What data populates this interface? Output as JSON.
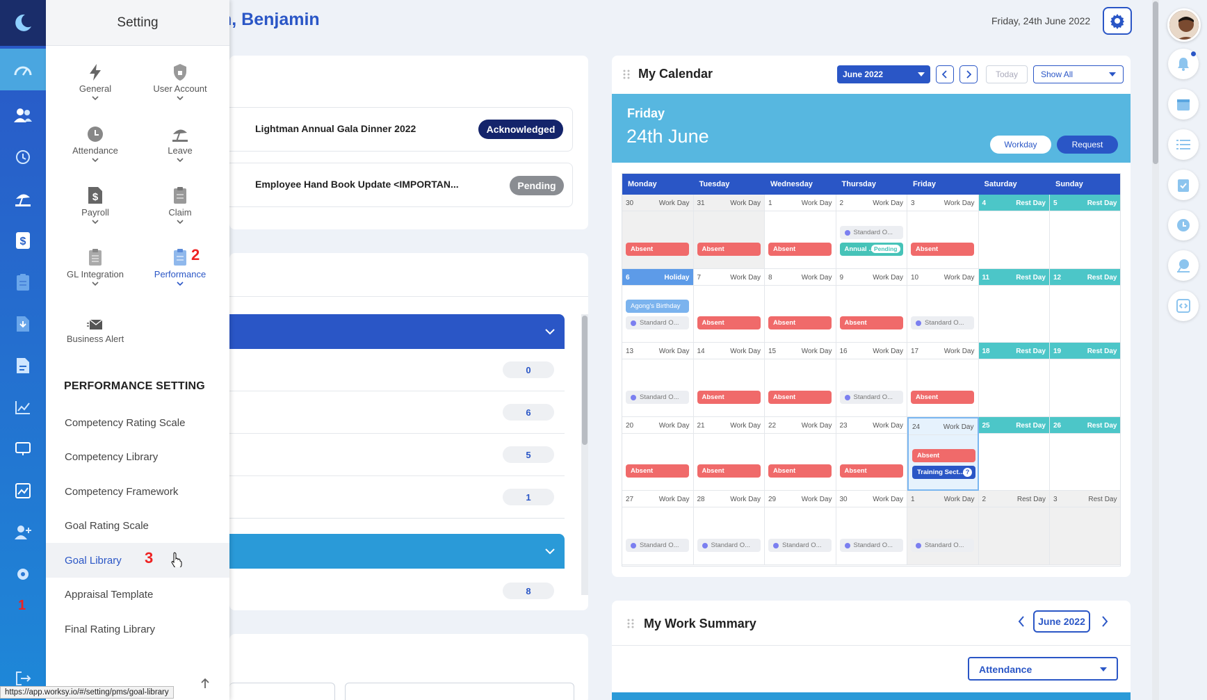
{
  "app": {
    "status_url": "https://app.worksy.io/#/setting/pms/goal-library"
  },
  "settings_panel": {
    "title": "Setting",
    "categories": [
      {
        "label": "General",
        "icon": "bolt-icon"
      },
      {
        "label": "User Account",
        "icon": "shield-lock-icon"
      },
      {
        "label": "Attendance",
        "icon": "clock-icon"
      },
      {
        "label": "Leave",
        "icon": "beach-umbrella-icon"
      },
      {
        "label": "Payroll",
        "icon": "dollar-document-icon"
      },
      {
        "label": "Claim",
        "icon": "clipboard-icon"
      },
      {
        "label": "GL Integration",
        "icon": "clipboard-list-icon"
      },
      {
        "label": "Performance",
        "icon": "clipboard-check-icon"
      },
      {
        "label": "Business Alert",
        "icon": "envelope-icon"
      }
    ],
    "step_markers": {
      "rail": "1",
      "performance": "2",
      "goal_library": "3"
    },
    "performance_title": "PERFORMANCE SETTING",
    "performance_items": [
      "Competency Rating Scale",
      "Competency Library",
      "Competency Framework",
      "Goal Rating Scale",
      "Goal Library",
      "Appraisal Template",
      "Final Rating Library"
    ],
    "active_item": "Goal Library"
  },
  "header": {
    "greeting": "n, Benjamin",
    "date": "Friday, 24th June 2022"
  },
  "announcements": [
    {
      "title": "Lightman Annual Gala Dinner 2022",
      "status": "Acknowledged",
      "status_color": "#14246b"
    },
    {
      "title": "Employee Hand Book Update <IMPORTAN...",
      "status": "Pending",
      "status_color": "#8a8d92"
    }
  ],
  "counts_group_1": [
    "0",
    "6",
    "5",
    "1"
  ],
  "counts_group_2": [
    "8"
  ],
  "calendar": {
    "title": "My Calendar",
    "month": "June 2022",
    "today_label": "Today",
    "filter": "Show All",
    "banner_day": "Friday",
    "banner_date": "24th June",
    "workday_label": "Workday",
    "request_label": "Request",
    "weekdays": [
      "Monday",
      "Tuesday",
      "Wednesday",
      "Thursday",
      "Friday",
      "Saturday",
      "Sunday"
    ],
    "weeks": [
      [
        {
          "d": "30",
          "l": "Work Day",
          "t": "grey",
          "e": [
            {
              "k": "absent",
              "x": "Absent"
            }
          ]
        },
        {
          "d": "31",
          "l": "Work Day",
          "t": "grey",
          "e": [
            {
              "k": "absent",
              "x": "Absent"
            }
          ]
        },
        {
          "d": "1",
          "l": "Work Day",
          "t": "",
          "e": [
            {
              "k": "absent",
              "x": "Absent"
            }
          ]
        },
        {
          "d": "2",
          "l": "Work Day",
          "t": "",
          "e": [
            {
              "k": "std",
              "x": "Standard O..."
            },
            {
              "k": "leave",
              "x": "Annual ...",
              "b": "Pending"
            }
          ]
        },
        {
          "d": "3",
          "l": "Work Day",
          "t": "",
          "e": [
            {
              "k": "absent",
              "x": "Absent"
            }
          ]
        },
        {
          "d": "4",
          "l": "Rest Day",
          "t": "rest",
          "e": []
        },
        {
          "d": "5",
          "l": "Rest Day",
          "t": "rest",
          "e": []
        }
      ],
      [
        {
          "d": "6",
          "l": "Holiday",
          "t": "hol",
          "e": [
            {
              "k": "bday",
              "x": "Agong's Birthday"
            },
            {
              "k": "std",
              "x": "Standard O..."
            }
          ]
        },
        {
          "d": "7",
          "l": "Work Day",
          "t": "",
          "e": [
            {
              "k": "absent",
              "x": "Absent"
            }
          ]
        },
        {
          "d": "8",
          "l": "Work Day",
          "t": "",
          "e": [
            {
              "k": "absent",
              "x": "Absent"
            }
          ]
        },
        {
          "d": "9",
          "l": "Work Day",
          "t": "",
          "e": [
            {
              "k": "absent",
              "x": "Absent"
            }
          ]
        },
        {
          "d": "10",
          "l": "Work Day",
          "t": "",
          "e": [
            {
              "k": "std",
              "x": "Standard O..."
            }
          ]
        },
        {
          "d": "11",
          "l": "Rest Day",
          "t": "rest",
          "e": []
        },
        {
          "d": "12",
          "l": "Rest Day",
          "t": "rest",
          "e": []
        }
      ],
      [
        {
          "d": "13",
          "l": "Work Day",
          "t": "",
          "e": [
            {
              "k": "std",
              "x": "Standard O..."
            }
          ]
        },
        {
          "d": "14",
          "l": "Work Day",
          "t": "",
          "e": [
            {
              "k": "absent",
              "x": "Absent"
            }
          ]
        },
        {
          "d": "15",
          "l": "Work Day",
          "t": "",
          "e": [
            {
              "k": "absent",
              "x": "Absent"
            }
          ]
        },
        {
          "d": "16",
          "l": "Work Day",
          "t": "",
          "e": [
            {
              "k": "std",
              "x": "Standard O..."
            }
          ]
        },
        {
          "d": "17",
          "l": "Work Day",
          "t": "",
          "e": [
            {
              "k": "absent",
              "x": "Absent"
            }
          ]
        },
        {
          "d": "18",
          "l": "Rest Day",
          "t": "rest",
          "e": []
        },
        {
          "d": "19",
          "l": "Rest Day",
          "t": "rest",
          "e": []
        }
      ],
      [
        {
          "d": "20",
          "l": "Work Day",
          "t": "",
          "e": [
            {
              "k": "absent",
              "x": "Absent"
            }
          ]
        },
        {
          "d": "21",
          "l": "Work Day",
          "t": "",
          "e": [
            {
              "k": "absent",
              "x": "Absent"
            }
          ]
        },
        {
          "d": "22",
          "l": "Work Day",
          "t": "",
          "e": [
            {
              "k": "absent",
              "x": "Absent"
            }
          ]
        },
        {
          "d": "23",
          "l": "Work Day",
          "t": "",
          "e": [
            {
              "k": "absent",
              "x": "Absent"
            }
          ]
        },
        {
          "d": "24",
          "l": "Work Day",
          "t": "today",
          "e": [
            {
              "k": "absent",
              "x": "Absent"
            },
            {
              "k": "train",
              "x": "Training Sect...",
              "b": "?"
            }
          ]
        },
        {
          "d": "25",
          "l": "Rest Day",
          "t": "rest",
          "e": []
        },
        {
          "d": "26",
          "l": "Rest Day",
          "t": "rest",
          "e": []
        }
      ],
      [
        {
          "d": "27",
          "l": "Work Day",
          "t": "",
          "e": [
            {
              "k": "std",
              "x": "Standard O..."
            }
          ]
        },
        {
          "d": "28",
          "l": "Work Day",
          "t": "",
          "e": [
            {
              "k": "std",
              "x": "Standard O..."
            }
          ]
        },
        {
          "d": "29",
          "l": "Work Day",
          "t": "",
          "e": [
            {
              "k": "std",
              "x": "Standard O..."
            }
          ]
        },
        {
          "d": "30",
          "l": "Work Day",
          "t": "",
          "e": [
            {
              "k": "std",
              "x": "Standard O..."
            }
          ]
        },
        {
          "d": "1",
          "l": "Work Day",
          "t": "grey",
          "e": [
            {
              "k": "std",
              "x": "Standard O..."
            }
          ]
        },
        {
          "d": "2",
          "l": "Rest Day",
          "t": "grey",
          "e": []
        },
        {
          "d": "3",
          "l": "Rest Day",
          "t": "grey",
          "e": []
        }
      ]
    ]
  },
  "work_summary": {
    "title": "My Work Summary",
    "month": "June 2022",
    "select": "Attendance"
  },
  "colors": {
    "primary": "#2a56c6",
    "absent": "#f06a6a",
    "rest": "#4cc6c8",
    "banner": "#57b7e0"
  }
}
